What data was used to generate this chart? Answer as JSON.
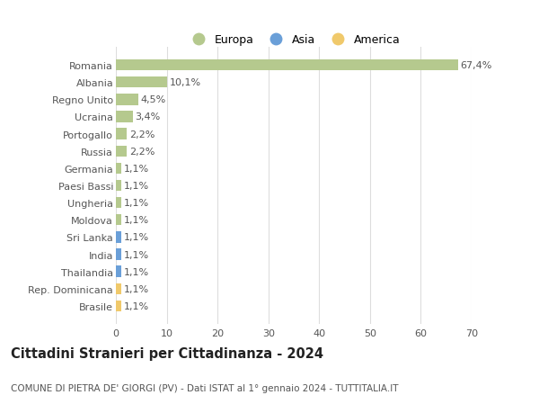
{
  "categories": [
    "Romania",
    "Albania",
    "Regno Unito",
    "Ucraina",
    "Portogallo",
    "Russia",
    "Germania",
    "Paesi Bassi",
    "Ungheria",
    "Moldova",
    "Sri Lanka",
    "India",
    "Thailandia",
    "Rep. Dominicana",
    "Brasile"
  ],
  "values": [
    67.4,
    10.1,
    4.5,
    3.4,
    2.2,
    2.2,
    1.1,
    1.1,
    1.1,
    1.1,
    1.1,
    1.1,
    1.1,
    1.1,
    1.1
  ],
  "labels": [
    "67,4%",
    "10,1%",
    "4,5%",
    "3,4%",
    "2,2%",
    "2,2%",
    "1,1%",
    "1,1%",
    "1,1%",
    "1,1%",
    "1,1%",
    "1,1%",
    "1,1%",
    "1,1%",
    "1,1%"
  ],
  "colors": [
    "#b5c98e",
    "#b5c98e",
    "#b5c98e",
    "#b5c98e",
    "#b5c98e",
    "#b5c98e",
    "#b5c98e",
    "#b5c98e",
    "#b5c98e",
    "#b5c98e",
    "#6a9fd8",
    "#6a9fd8",
    "#6a9fd8",
    "#f0c96b",
    "#f0c96b"
  ],
  "legend_labels": [
    "Europa",
    "Asia",
    "America"
  ],
  "legend_colors": [
    "#b5c98e",
    "#6a9fd8",
    "#f0c96b"
  ],
  "title": "Cittadini Stranieri per Cittadinanza - 2024",
  "subtitle": "COMUNE DI PIETRA DE' GIORGI (PV) - Dati ISTAT al 1° gennaio 2024 - TUTTITALIA.IT",
  "xlim": [
    0,
    70
  ],
  "xticks": [
    0,
    10,
    20,
    30,
    40,
    50,
    60,
    70
  ],
  "bg_color": "#ffffff",
  "grid_color": "#dddddd",
  "bar_height": 0.65,
  "label_fontsize": 8,
  "tick_fontsize": 8,
  "title_fontsize": 10.5,
  "subtitle_fontsize": 7.5
}
